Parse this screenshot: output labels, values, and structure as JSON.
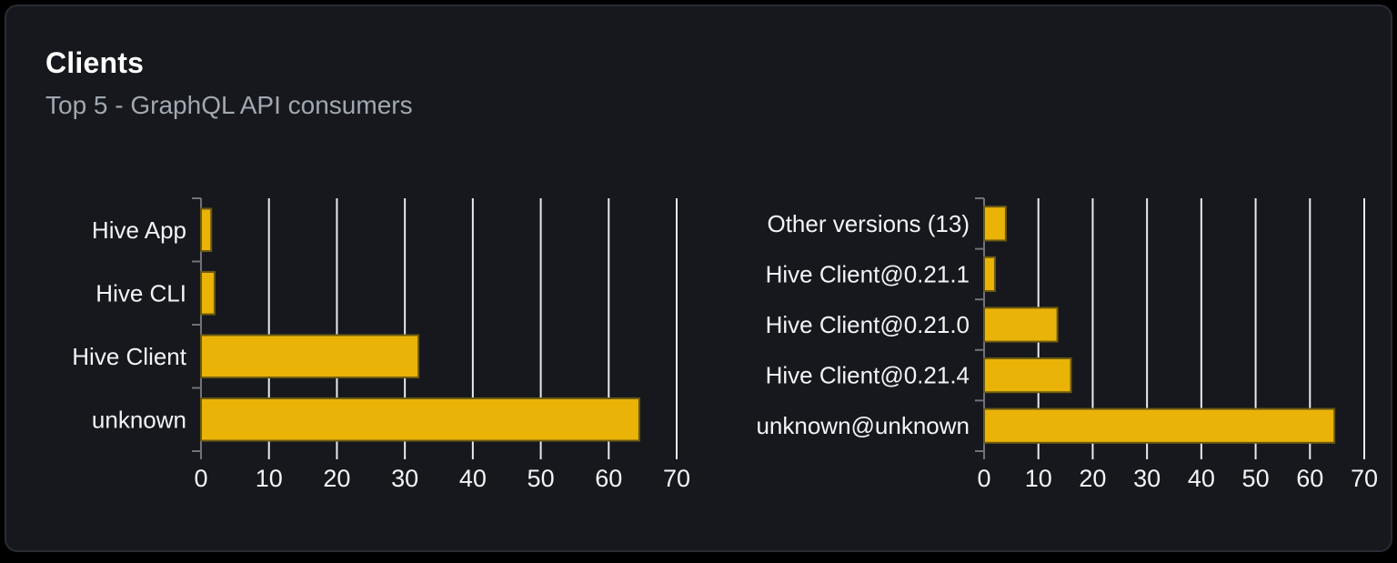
{
  "header": {
    "title": "Clients",
    "subtitle": "Top 5 - GraphQL API consumers"
  },
  "colors": {
    "page_bg": "#000000",
    "card_bg": "#16181d",
    "card_border": "#282c33",
    "title": "#ffffff",
    "subtitle": "#a2a8b1",
    "bar": "#eab308",
    "bar_edge": "#6b5a13",
    "gridline": "#e6ebf4",
    "axis": "#71717a",
    "label": "#f3f4f6"
  },
  "chart_data": [
    {
      "type": "bar",
      "orientation": "horizontal",
      "title": "",
      "categories": [
        "Hive App",
        "Hive CLI",
        "Hive Client",
        "unknown"
      ],
      "values": [
        1.5,
        2,
        32,
        64.5
      ],
      "xlim": [
        0,
        70
      ],
      "xticks": [
        0,
        10,
        20,
        30,
        40,
        50,
        60,
        70
      ],
      "grid": true,
      "legend": false
    },
    {
      "type": "bar",
      "orientation": "horizontal",
      "title": "",
      "categories": [
        "Other versions (13)",
        "Hive Client@0.21.1",
        "Hive Client@0.21.0",
        "Hive Client@0.21.4",
        "unknown@unknown"
      ],
      "values": [
        4,
        2,
        13.5,
        16,
        64.5
      ],
      "xlim": [
        0,
        70
      ],
      "xticks": [
        0,
        10,
        20,
        30,
        40,
        50,
        60,
        70
      ],
      "grid": true,
      "legend": false
    }
  ]
}
